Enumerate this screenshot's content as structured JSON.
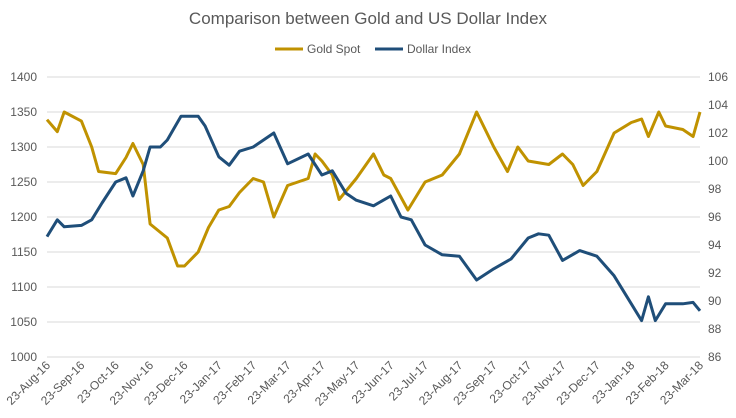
{
  "chart_data": {
    "type": "line",
    "title": "Comparison between Gold and US Dollar Index",
    "legend_position": "top",
    "grid": true,
    "x_ticks": [
      "23-Aug-16",
      "23-Sep-16",
      "23-Oct-16",
      "23-Nov-16",
      "23-Dec-16",
      "23-Jan-17",
      "23-Feb-17",
      "23-Mar-17",
      "23-Apr-17",
      "23-May-17",
      "23-Jun-17",
      "23-Jul-17",
      "23-Aug-17",
      "23-Sep-17",
      "23-Oct-17",
      "23-Nov-17",
      "23-Dec-17",
      "23-Jan-18",
      "23-Feb-18",
      "23-Mar-18"
    ],
    "y_left": {
      "range": [
        1000,
        1400
      ],
      "ticks": [
        "1000",
        "1050",
        "1100",
        "1150",
        "1200",
        "1250",
        "1300",
        "1350",
        "1400"
      ]
    },
    "y_right": {
      "range": [
        86,
        106
      ],
      "ticks": [
        "86",
        "88",
        "90",
        "92",
        "94",
        "96",
        "98",
        "100",
        "102",
        "104",
        "106"
      ]
    },
    "series": [
      {
        "name": "Gold Spot",
        "axis": "left",
        "color": "#C09200",
        "x": [
          0,
          0.3,
          0.5,
          1,
          1.3,
          1.5,
          2,
          2.3,
          2.5,
          2.8,
          3,
          3.5,
          3.8,
          4,
          4.4,
          4.7,
          5,
          5.3,
          5.6,
          6,
          6.3,
          6.6,
          7,
          7.6,
          7.8,
          8,
          8.3,
          8.5,
          9,
          9.5,
          9.8,
          10,
          10.5,
          11,
          11.5,
          12,
          12.5,
          13,
          13.4,
          13.7,
          14,
          14.6,
          15,
          15.3,
          15.6,
          16,
          16.5,
          17,
          17.3,
          17.5,
          17.8,
          18,
          18.5,
          18.8,
          19
        ],
        "y": [
          1339,
          1322,
          1350,
          1337,
          1300,
          1265,
          1262,
          1285,
          1305,
          1275,
          1190,
          1170,
          1130,
          1130,
          1150,
          1185,
          1210,
          1215,
          1235,
          1255,
          1250,
          1200,
          1245,
          1255,
          1290,
          1280,
          1260,
          1225,
          1255,
          1290,
          1260,
          1255,
          1210,
          1250,
          1260,
          1290,
          1350,
          1300,
          1265,
          1300,
          1280,
          1275,
          1290,
          1275,
          1245,
          1265,
          1320,
          1335,
          1340,
          1315,
          1350,
          1330,
          1325,
          1315,
          1350
        ]
      },
      {
        "name": "Dollar Index",
        "axis": "right",
        "color": "#1F4E79",
        "x": [
          0,
          0.3,
          0.5,
          1,
          1.3,
          1.6,
          2,
          2.3,
          2.5,
          2.8,
          3,
          3.3,
          3.5,
          3.9,
          4.4,
          4.6,
          5,
          5.3,
          5.6,
          6,
          6.3,
          6.6,
          7,
          7.6,
          8,
          8.3,
          8.7,
          9,
          9.5,
          10,
          10.3,
          10.6,
          11,
          11.5,
          12,
          12.5,
          13,
          13.5,
          14,
          14.3,
          14.6,
          15,
          15.5,
          16,
          16.5,
          17,
          17.3,
          17.5,
          17.7,
          18,
          18.5,
          18.8,
          19
        ],
        "y": [
          94.6,
          95.8,
          95.3,
          95.4,
          95.8,
          97,
          98.5,
          98.8,
          97.5,
          99.3,
          101,
          101,
          101.5,
          103.2,
          103.2,
          102.5,
          100.3,
          99.7,
          100.7,
          101,
          101.5,
          102,
          99.8,
          100.5,
          99,
          99.3,
          97.7,
          97.2,
          96.8,
          97.5,
          96,
          95.8,
          94,
          93.3,
          93.2,
          91.5,
          92.3,
          93,
          94.5,
          94.8,
          94.7,
          92.9,
          93.6,
          93.2,
          91.8,
          89.8,
          88.6,
          90.3,
          88.6,
          89.8,
          89.8,
          89.9,
          89.3
        ]
      }
    ]
  }
}
